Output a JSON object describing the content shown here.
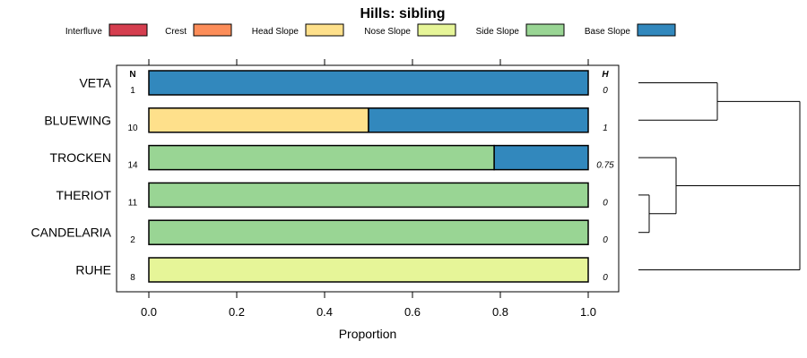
{
  "chart_data": {
    "type": "bar",
    "stacked": true,
    "orientation": "horizontal",
    "title": "Hills: sibling",
    "xlabel": "Proportion",
    "xlim": [
      0,
      1
    ],
    "xticks": [
      "0.0",
      "0.2",
      "0.4",
      "0.6",
      "0.8",
      "1.0"
    ],
    "n_header": "N",
    "h_header": "H",
    "legend_position": "top",
    "categories": [
      "VETA",
      "BLUEWING",
      "TROCKEN",
      "THERIOT",
      "CANDELARIA",
      "RUHE"
    ],
    "n": [
      "1",
      "10",
      "14",
      "11",
      "2",
      "8"
    ],
    "h": [
      "0",
      "1",
      "0.75",
      "0",
      "0",
      "0"
    ],
    "series": [
      {
        "name": "Interfluve",
        "color": "#D53E4F",
        "values": [
          0,
          0,
          0,
          0,
          0,
          0
        ]
      },
      {
        "name": "Crest",
        "color": "#FC8D59",
        "values": [
          0,
          0,
          0,
          0,
          0,
          0
        ]
      },
      {
        "name": "Head Slope",
        "color": "#FEE08B",
        "values": [
          0,
          0.5,
          0,
          0,
          0,
          0
        ]
      },
      {
        "name": "Nose Slope",
        "color": "#E6F598",
        "values": [
          0,
          0,
          0,
          0,
          0,
          1
        ]
      },
      {
        "name": "Side Slope",
        "color": "#99D594",
        "values": [
          0,
          0,
          0.786,
          1,
          1,
          0
        ]
      },
      {
        "name": "Base Slope",
        "color": "#3288BD",
        "values": [
          1,
          0.5,
          0.214,
          0,
          0,
          0
        ]
      }
    ],
    "dendrogram": "VETA and BLUEWING join; THERIOT and CANDELARIA join, then TROCKEN; then RUHE; the two groups join at the root"
  }
}
